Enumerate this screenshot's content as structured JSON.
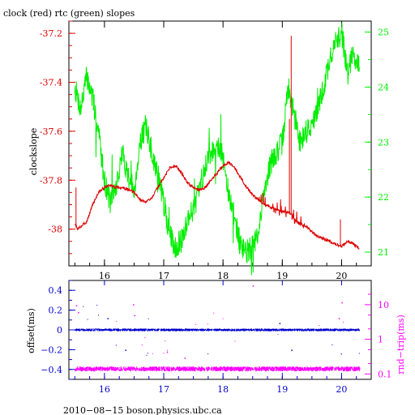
{
  "chart_data": [
    {
      "type": "line",
      "title": "clock (red) rtc (green) slopes",
      "ylabel": "clockslope",
      "xlabel": "",
      "xlim": [
        15.4,
        20.5
      ],
      "x_ticks": [
        "16",
        "17",
        "18",
        "19",
        "20"
      ],
      "x_tick_values": [
        16,
        17,
        18,
        19,
        20
      ],
      "ylim": [
        -38.15,
        -37.15
      ],
      "y_ticks": [
        "-37.2",
        "-37.4",
        "-37.6",
        "-37.8",
        "-38"
      ],
      "y_tick_values": [
        -37.2,
        -37.4,
        -37.6,
        -37.8,
        -38.0
      ],
      "y2lim": [
        20.75,
        25.2
      ],
      "y2_ticks": [
        "25",
        "24",
        "23",
        "22",
        "21"
      ],
      "y2_tick_values": [
        25,
        24,
        23,
        22,
        21
      ],
      "grid": false,
      "series": [
        {
          "axis": "left",
          "color": "#dd0000",
          "x": [
            15.5,
            15.55,
            15.6,
            15.7,
            15.8,
            15.9,
            16.0,
            16.1,
            16.2,
            16.3,
            16.4,
            16.5,
            16.6,
            16.7,
            16.8,
            16.9,
            17.0,
            17.1,
            17.2,
            17.3,
            17.4,
            17.5,
            17.6,
            17.7,
            17.8,
            17.9,
            18.0,
            18.1,
            18.2,
            18.3,
            18.4,
            18.5,
            18.6,
            18.7,
            18.8,
            18.9,
            19.0,
            19.1,
            19.16,
            19.2,
            19.3,
            19.4,
            19.5,
            19.6,
            19.7,
            19.8,
            19.9,
            20.0,
            20.1,
            20.2,
            20.3
          ],
          "y": [
            -37.98,
            -38.0,
            -37.99,
            -37.97,
            -37.9,
            -37.85,
            -37.83,
            -37.82,
            -37.83,
            -37.83,
            -37.84,
            -37.85,
            -37.88,
            -37.89,
            -37.87,
            -37.83,
            -37.79,
            -37.75,
            -37.74,
            -37.77,
            -37.81,
            -37.83,
            -37.84,
            -37.83,
            -37.8,
            -37.77,
            -37.74,
            -37.73,
            -37.75,
            -37.79,
            -37.83,
            -37.86,
            -37.88,
            -37.9,
            -37.91,
            -37.92,
            -37.93,
            -37.93,
            -37.94,
            -37.96,
            -37.98,
            -37.99,
            -38.01,
            -38.03,
            -38.04,
            -38.05,
            -38.06,
            -38.07,
            -38.05,
            -38.06,
            -38.08
          ],
          "spikes": [
            [
              15.52,
              -37.83
            ],
            [
              19.15,
              -37.21
            ],
            [
              19.12,
              -37.55
            ],
            [
              19.98,
              -37.96
            ]
          ]
        },
        {
          "axis": "right",
          "color": "#00ee00",
          "x": [
            15.5,
            15.55,
            15.6,
            15.7,
            15.8,
            15.9,
            16.0,
            16.1,
            16.2,
            16.3,
            16.4,
            16.5,
            16.6,
            16.7,
            16.8,
            16.9,
            17.0,
            17.1,
            17.2,
            17.3,
            17.4,
            17.5,
            17.6,
            17.7,
            17.8,
            17.9,
            18.0,
            18.1,
            18.2,
            18.3,
            18.4,
            18.5,
            18.6,
            18.7,
            18.8,
            18.9,
            19.0,
            19.1,
            19.2,
            19.3,
            19.4,
            19.5,
            19.6,
            19.7,
            19.8,
            19.9,
            20.0,
            20.1,
            20.2,
            20.3
          ],
          "y": [
            24.0,
            23.8,
            23.6,
            24.2,
            23.8,
            23.2,
            22.3,
            21.9,
            22.2,
            22.8,
            22.4,
            22.1,
            23.0,
            23.3,
            22.8,
            22.4,
            21.9,
            21.3,
            21.1,
            21.2,
            21.6,
            21.8,
            22.1,
            22.6,
            22.8,
            23.0,
            22.7,
            22.0,
            21.6,
            21.1,
            21.0,
            21.1,
            21.3,
            22.2,
            22.6,
            22.8,
            23.0,
            24.0,
            23.5,
            23.0,
            23.2,
            23.3,
            23.6,
            24.0,
            24.5,
            24.8,
            25.0,
            24.3,
            24.6,
            24.4
          ]
        }
      ]
    },
    {
      "type": "scatter",
      "ylabel": "offset(ms)",
      "y2label": "rnd−trip(ms)",
      "xlim": [
        15.4,
        20.5
      ],
      "x_ticks": [
        "16",
        "17",
        "18",
        "19",
        "20"
      ],
      "x_tick_values": [
        16,
        17,
        18,
        19,
        20
      ],
      "ylim": [
        -0.5,
        0.5
      ],
      "y_ticks": [
        "0.4",
        "0.2",
        "0",
        "−0.2",
        "−0.4"
      ],
      "y_tick_values": [
        0.4,
        0.2,
        0.0,
        -0.2,
        -0.4
      ],
      "y2_scale": "log",
      "y2lim": [
        0.07,
        50
      ],
      "y2_ticks": [
        "10",
        "1",
        "0.1"
      ],
      "y2_tick_values": [
        10,
        1,
        0.1
      ],
      "grid": false,
      "series": [
        {
          "axis": "left",
          "color": "#0000cc",
          "x": [
            15.5,
            20.3
          ],
          "y": [
            0.0,
            0.0
          ]
        },
        {
          "axis": "right",
          "color": "#ff00ff",
          "x": [
            15.5,
            20.3
          ],
          "y": [
            0.14,
            0.14
          ]
        }
      ],
      "outliers": [
        {
          "x": 15.52,
          "y": 0.25,
          "color": "#ff00ff"
        },
        {
          "x": 15.55,
          "y": 0.18,
          "color": "#ff00ff"
        },
        {
          "x": 16.05,
          "y": 0.12,
          "color": "#0000cc"
        },
        {
          "x": 16.35,
          "y": -0.2,
          "color": "#0000cc"
        },
        {
          "x": 16.48,
          "y": 0.26,
          "color": "#ff00ff"
        },
        {
          "x": 16.5,
          "y": 0.15,
          "color": "#ff00ff"
        },
        {
          "x": 17.05,
          "y": -0.22,
          "color": "#ff00ff"
        },
        {
          "x": 17.35,
          "y": -0.28,
          "color": "#ff00ff"
        },
        {
          "x": 18.5,
          "y": 0.45,
          "color": "#ff00ff"
        },
        {
          "x": 18.95,
          "y": 0.07,
          "color": "#0000cc"
        },
        {
          "x": 19.15,
          "y": -0.2,
          "color": "#0000cc"
        },
        {
          "x": 19.95,
          "y": 0.12,
          "color": "#ff00ff"
        },
        {
          "x": 20.0,
          "y": 0.28,
          "color": "#ff00ff"
        }
      ]
    }
  ],
  "footer": "2010−08−15 boson.physics.ubc.ca"
}
